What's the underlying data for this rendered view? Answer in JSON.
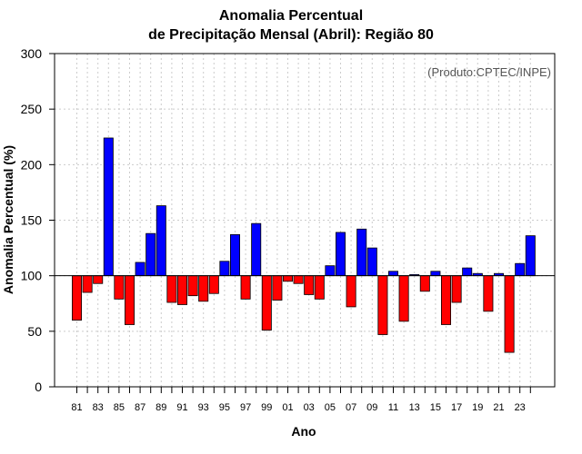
{
  "chart_data": {
    "type": "bar",
    "title": "Anomalia Percentual",
    "subtitle": "de Precipitação Mensal (Abril): Região 80",
    "credit": "(Produto:CPTEC/INPE)",
    "xlabel": "Ano",
    "ylabel": "Anomalia Percentual (%)",
    "ylim": [
      0,
      300
    ],
    "yticks": [
      0,
      50,
      100,
      150,
      200,
      250,
      300
    ],
    "baseline": 100,
    "grid": true,
    "colors": {
      "above": "#0000ff",
      "below": "#ff0000",
      "edge": "#000000",
      "grid": "#cccccc"
    },
    "categories": [
      "81",
      "82",
      "83",
      "84",
      "85",
      "86",
      "87",
      "88",
      "89",
      "90",
      "91",
      "92",
      "93",
      "94",
      "95",
      "96",
      "97",
      "98",
      "99",
      "00",
      "01",
      "02",
      "03",
      "04",
      "05",
      "06",
      "07",
      "08",
      "09",
      "10",
      "11",
      "12",
      "13",
      "14",
      "15",
      "16",
      "17",
      "18",
      "19",
      "20",
      "21",
      "22",
      "23",
      "24"
    ],
    "tick_labels": [
      "81",
      "83",
      "85",
      "87",
      "89",
      "91",
      "93",
      "95",
      "97",
      "99",
      "01",
      "03",
      "05",
      "07",
      "09",
      "11",
      "13",
      "15",
      "17",
      "19",
      "21",
      "23"
    ],
    "values": [
      60,
      85,
      93,
      224,
      79,
      56,
      112,
      138,
      163,
      76,
      74,
      82,
      77,
      84,
      113,
      137,
      79,
      147,
      51,
      78,
      95,
      93,
      83,
      79,
      109,
      139,
      72,
      142,
      125,
      47,
      104,
      59,
      101,
      86,
      104,
      56,
      76,
      107,
      102,
      68,
      102,
      31,
      111,
      136
    ]
  }
}
